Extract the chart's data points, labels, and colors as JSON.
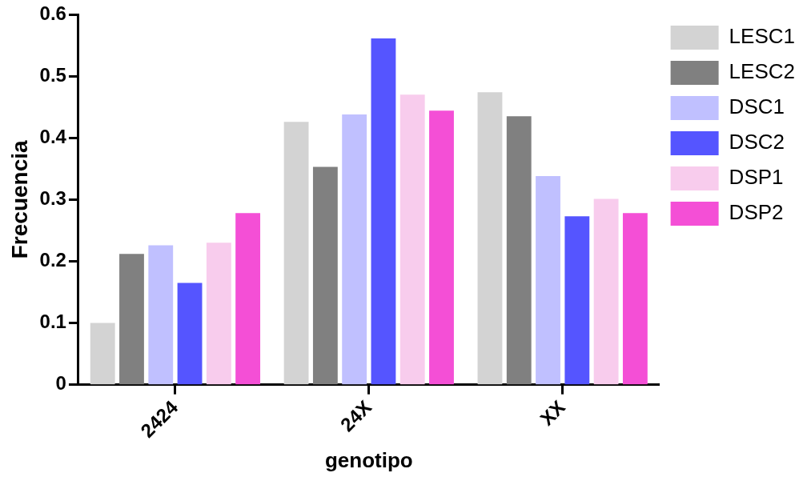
{
  "chart_data": {
    "type": "bar",
    "xlabel": "genotipo",
    "ylabel": "Frecuencia",
    "categories": [
      "2424",
      "24X",
      "XX"
    ],
    "ylim": [
      0,
      0.6
    ],
    "yticks": [
      0,
      0.1,
      0.2,
      0.3,
      0.4,
      0.5,
      0.6
    ],
    "grid": false,
    "legend": "right",
    "series": [
      {
        "name": "LESC1",
        "color": "#d3d3d3",
        "values": [
          0.1,
          0.426,
          0.474
        ]
      },
      {
        "name": "LESC2",
        "color": "#808080",
        "values": [
          0.212,
          0.353,
          0.435
        ]
      },
      {
        "name": "DSC1",
        "color": "#c0c0ff",
        "values": [
          0.226,
          0.438,
          0.338
        ]
      },
      {
        "name": "DSC2",
        "color": "#5555ff",
        "values": [
          0.165,
          0.561,
          0.273
        ]
      },
      {
        "name": "DSP1",
        "color": "#f8cced",
        "values": [
          0.23,
          0.47,
          0.301
        ]
      },
      {
        "name": "DSP2",
        "color": "#f44fd6",
        "values": [
          0.278,
          0.444,
          0.278
        ]
      }
    ]
  }
}
